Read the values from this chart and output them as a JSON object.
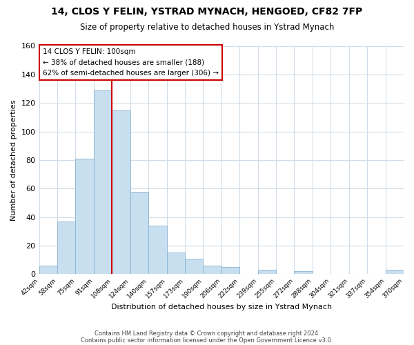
{
  "title": "14, CLOS Y FELIN, YSTRAD MYNACH, HENGOED, CF82 7FP",
  "subtitle": "Size of property relative to detached houses in Ystrad Mynach",
  "xlabel": "Distribution of detached houses by size in Ystrad Mynach",
  "ylabel": "Number of detached properties",
  "bin_labels": [
    "42sqm",
    "58sqm",
    "75sqm",
    "91sqm",
    "108sqm",
    "124sqm",
    "140sqm",
    "157sqm",
    "173sqm",
    "190sqm",
    "206sqm",
    "222sqm",
    "239sqm",
    "255sqm",
    "272sqm",
    "288sqm",
    "304sqm",
    "321sqm",
    "337sqm",
    "354sqm",
    "370sqm"
  ],
  "bar_values": [
    6,
    37,
    81,
    129,
    115,
    58,
    34,
    15,
    11,
    6,
    5,
    0,
    3,
    0,
    2,
    0,
    0,
    0,
    0,
    3
  ],
  "bar_color": "#c8dff0",
  "bar_edge_color": "#8ab4d4",
  "vline_x_idx": 4,
  "vline_color": "#cc0000",
  "annotation_title": "14 CLOS Y FELIN: 100sqm",
  "annotation_line1": "← 38% of detached houses are smaller (188)",
  "annotation_line2": "62% of semi-detached houses are larger (306) →",
  "annotation_box_color": "#ffffff",
  "annotation_box_edge": "#cc0000",
  "ylim": [
    0,
    160
  ],
  "yticks": [
    0,
    20,
    40,
    60,
    80,
    100,
    120,
    140,
    160
  ],
  "footer1": "Contains HM Land Registry data © Crown copyright and database right 2024.",
  "footer2": "Contains public sector information licensed under the Open Government Licence v3.0.",
  "bg_color": "#f0f4f8"
}
